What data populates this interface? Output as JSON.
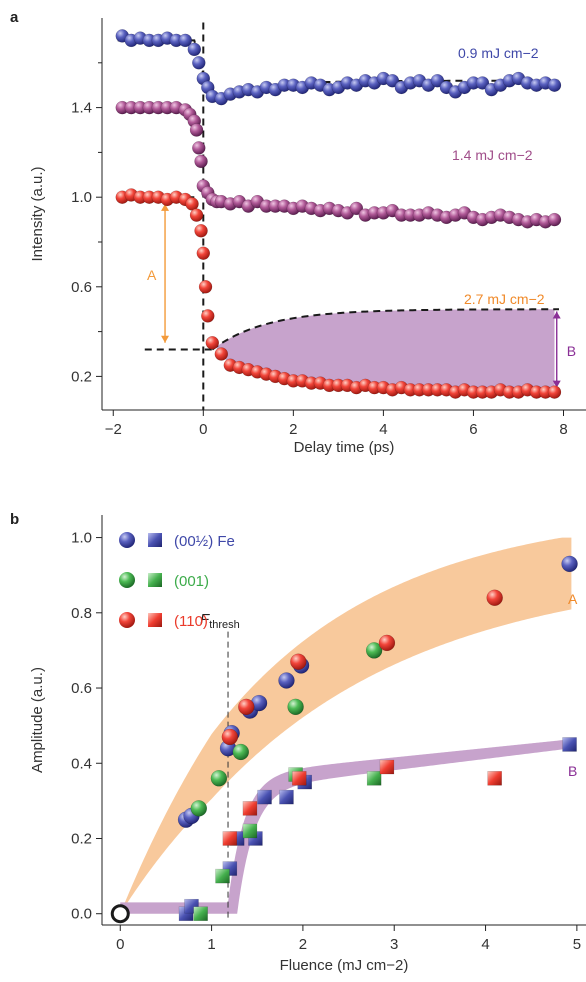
{
  "chart_data": [
    {
      "type": "scatter",
      "panel_label": "a",
      "xlabel": "Delay time (ps)",
      "ylabel": "Intensity (a.u.)",
      "xlim": [
        -2.25,
        8.5
      ],
      "ylim": [
        0.05,
        1.8
      ],
      "xticks": [
        -2,
        0,
        2,
        4,
        6,
        8
      ],
      "xtick_labels": [
        "−2",
        "0",
        "2",
        "4",
        "6",
        "8"
      ],
      "yticks": [
        0.2,
        0.6,
        1.0,
        1.4
      ],
      "ytick_labels": [
        "0.2",
        "0.6",
        "1.0",
        "1.4"
      ],
      "yminor_ticks": [
        0.4,
        0.8,
        1.2,
        1.6
      ],
      "series": [
        {
          "name": "0.9 mJ cm−2",
          "color": "#5a5fb5",
          "x": [
            -1.8,
            -1.6,
            -1.4,
            -1.2,
            -1.0,
            -0.8,
            -0.6,
            -0.4,
            -0.2,
            -0.1,
            0.0,
            0.1,
            0.2,
            0.4,
            0.6,
            0.8,
            1.0,
            1.2,
            1.4,
            1.6,
            1.8,
            2.0,
            2.2,
            2.4,
            2.6,
            2.8,
            3.0,
            3.2,
            3.4,
            3.6,
            3.8,
            4.0,
            4.2,
            4.4,
            4.6,
            4.8,
            5.0,
            5.2,
            5.4,
            5.6,
            5.8,
            6.0,
            6.2,
            6.4,
            6.6,
            6.8,
            7.0,
            7.2,
            7.4,
            7.6,
            7.8
          ],
          "y": [
            1.72,
            1.7,
            1.71,
            1.7,
            1.7,
            1.71,
            1.7,
            1.7,
            1.66,
            1.6,
            1.53,
            1.49,
            1.45,
            1.44,
            1.46,
            1.47,
            1.48,
            1.47,
            1.49,
            1.48,
            1.5,
            1.5,
            1.49,
            1.51,
            1.5,
            1.48,
            1.49,
            1.51,
            1.5,
            1.52,
            1.51,
            1.53,
            1.52,
            1.49,
            1.51,
            1.52,
            1.5,
            1.52,
            1.49,
            1.47,
            1.49,
            1.51,
            1.51,
            1.48,
            1.5,
            1.52,
            1.53,
            1.51,
            1.5,
            1.51,
            1.5
          ]
        },
        {
          "name": "1.4 mJ cm−2",
          "color": "#a04e8a",
          "x": [
            -1.8,
            -1.6,
            -1.4,
            -1.2,
            -1.0,
            -0.8,
            -0.6,
            -0.4,
            -0.3,
            -0.2,
            -0.15,
            -0.1,
            -0.05,
            0.0,
            0.1,
            0.2,
            0.3,
            0.4,
            0.6,
            0.8,
            1.0,
            1.2,
            1.4,
            1.6,
            1.8,
            2.0,
            2.2,
            2.4,
            2.6,
            2.8,
            3.0,
            3.2,
            3.4,
            3.6,
            3.8,
            4.0,
            4.2,
            4.4,
            4.6,
            4.8,
            5.0,
            5.2,
            5.4,
            5.6,
            5.8,
            6.0,
            6.2,
            6.4,
            6.6,
            6.8,
            7.0,
            7.2,
            7.4,
            7.6,
            7.8
          ],
          "y": [
            1.4,
            1.4,
            1.4,
            1.4,
            1.4,
            1.4,
            1.4,
            1.39,
            1.37,
            1.34,
            1.3,
            1.22,
            1.16,
            1.05,
            1.02,
            0.99,
            0.98,
            0.98,
            0.97,
            0.98,
            0.96,
            0.98,
            0.96,
            0.96,
            0.96,
            0.95,
            0.96,
            0.95,
            0.94,
            0.95,
            0.94,
            0.93,
            0.95,
            0.92,
            0.93,
            0.93,
            0.94,
            0.92,
            0.92,
            0.92,
            0.93,
            0.92,
            0.91,
            0.92,
            0.93,
            0.91,
            0.9,
            0.91,
            0.92,
            0.91,
            0.9,
            0.89,
            0.9,
            0.89,
            0.9
          ]
        },
        {
          "name": "2.7 mJ cm−2",
          "color": "#ea4a3a",
          "x": [
            -1.8,
            -1.6,
            -1.4,
            -1.2,
            -1.0,
            -0.8,
            -0.6,
            -0.4,
            -0.25,
            -0.15,
            -0.05,
            0.0,
            0.05,
            0.1,
            0.2,
            0.4,
            0.6,
            0.8,
            1.0,
            1.2,
            1.4,
            1.6,
            1.8,
            2.0,
            2.2,
            2.4,
            2.6,
            2.8,
            3.0,
            3.2,
            3.4,
            3.6,
            3.8,
            4.0,
            4.2,
            4.4,
            4.6,
            4.8,
            5.0,
            5.2,
            5.4,
            5.6,
            5.8,
            6.0,
            6.2,
            6.4,
            6.6,
            6.8,
            7.0,
            7.2,
            7.4,
            7.6,
            7.8
          ],
          "y": [
            1.0,
            1.01,
            1.0,
            1.0,
            1.0,
            0.99,
            1.0,
            0.99,
            0.97,
            0.92,
            0.85,
            0.75,
            0.6,
            0.47,
            0.35,
            0.3,
            0.25,
            0.24,
            0.23,
            0.22,
            0.21,
            0.2,
            0.19,
            0.18,
            0.18,
            0.17,
            0.17,
            0.16,
            0.16,
            0.16,
            0.15,
            0.16,
            0.15,
            0.15,
            0.14,
            0.15,
            0.14,
            0.14,
            0.14,
            0.14,
            0.14,
            0.13,
            0.14,
            0.13,
            0.13,
            0.13,
            0.14,
            0.13,
            0.13,
            0.14,
            0.13,
            0.13,
            0.13
          ]
        }
      ],
      "annotations": {
        "A": "A",
        "B": "B",
        "A_color": "#f39a3a",
        "B_color": "#8a2f96",
        "shade_color": "#c7a3cc"
      }
    },
    {
      "type": "scatter",
      "panel_label": "b",
      "xlabel": "Fluence (mJ cm−2)",
      "ylabel": "Amplitude (a.u.)",
      "xlim": [
        -0.2,
        5.1
      ],
      "ylim": [
        -0.03,
        1.06
      ],
      "xticks": [
        0,
        1,
        2,
        3,
        4,
        5
      ],
      "xtick_labels": [
        "0",
        "1",
        "2",
        "3",
        "4",
        "5"
      ],
      "yticks": [
        0.0,
        0.2,
        0.4,
        0.6,
        0.8,
        1.0
      ],
      "ytick_labels": [
        "0.0",
        "0.2",
        "0.4",
        "0.6",
        "0.8",
        "1.0"
      ],
      "threshold": {
        "x": 1.18,
        "label": "F",
        "sub": "thresh"
      },
      "band_A_color": "#f8c99c",
      "band_B_color": "#c7a3cc",
      "band_A_label": "A",
      "band_B_label": "B",
      "legend": [
        {
          "label": "(00½) Fe",
          "color": "#3f48a8"
        },
        {
          "label": "(001)",
          "color": "#3cab4a"
        },
        {
          "label": "(110)",
          "color": "#ea3a2a"
        }
      ],
      "series_A": [
        {
          "name": "(00½) Fe",
          "color": "#4a54b0",
          "x": [
            0.72,
            0.78,
            1.18,
            1.22,
            1.42,
            1.52,
            1.82,
            1.98,
            4.92
          ],
          "y": [
            0.25,
            0.26,
            0.44,
            0.48,
            0.54,
            0.56,
            0.62,
            0.66,
            0.93
          ]
        },
        {
          "name": "(001)",
          "color": "#3cab4a",
          "x": [
            0.86,
            1.08,
            1.32,
            1.92,
            2.78
          ],
          "y": [
            0.28,
            0.36,
            0.43,
            0.55,
            0.7
          ]
        },
        {
          "name": "(110)",
          "color": "#ea3a2a",
          "x": [
            1.2,
            1.38,
            1.95,
            2.92,
            4.1
          ],
          "y": [
            0.47,
            0.55,
            0.67,
            0.72,
            0.84
          ]
        }
      ],
      "series_B": [
        {
          "name": "(00½) Fe",
          "color": "#4a54b0",
          "x": [
            0.72,
            0.78,
            1.2,
            1.28,
            1.48,
            1.58,
            1.82,
            2.02,
            4.92
          ],
          "y": [
            0.0,
            0.02,
            0.12,
            0.2,
            0.2,
            0.31,
            0.31,
            0.35,
            0.45
          ]
        },
        {
          "name": "(001)",
          "color": "#3cab4a",
          "x": [
            0.88,
            1.12,
            1.42,
            1.92,
            2.78
          ],
          "y": [
            0.0,
            0.1,
            0.22,
            0.37,
            0.36
          ]
        },
        {
          "name": "(110)",
          "color": "#ea3a2a",
          "x": [
            1.2,
            1.42,
            1.96,
            2.92,
            4.1
          ],
          "y": [
            0.2,
            0.28,
            0.36,
            0.39,
            0.36
          ]
        }
      ],
      "origin_point": {
        "x": 0.0,
        "y": 0.0
      }
    }
  ]
}
